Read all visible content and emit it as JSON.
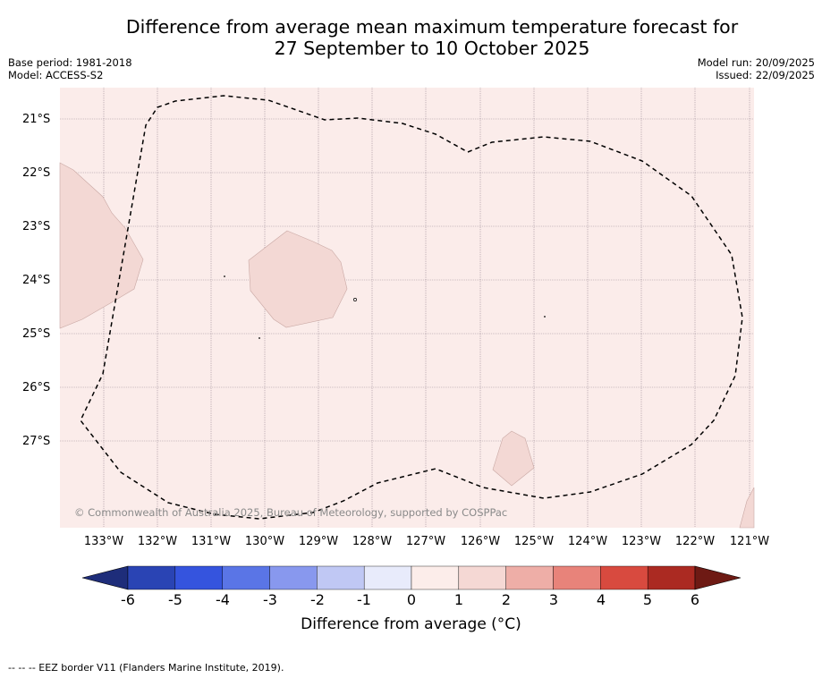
{
  "title": {
    "line1": "Difference from average mean maximum temperature forecast for",
    "line2": "27 September to 10 October 2025"
  },
  "meta": {
    "base_period": "Base period: 1981-2018",
    "model": "Model: ACCESS-S2",
    "model_run": "Model run: 20/09/2025",
    "issued": "Issued: 22/09/2025"
  },
  "map": {
    "latitudes": [
      "21°S",
      "22°S",
      "23°S",
      "24°S",
      "25°S",
      "26°S",
      "27°S"
    ],
    "longitudes": [
      "133°W",
      "132°W",
      "131°W",
      "130°W",
      "129°W",
      "128°W",
      "127°W",
      "126°W",
      "125°W",
      "124°W",
      "123°W",
      "122°W",
      "121°W"
    ],
    "colors": {
      "background_anomaly": "#fbecea",
      "higher_anomaly": "#f3d8d4",
      "eez_border": "#000000"
    },
    "copyright": "© Commonwealth of Australia 2025, Bureau of Meteorology, supported by COSPPac"
  },
  "colorbar": {
    "ticks": [
      "-6",
      "-5",
      "-4",
      "-3",
      "-2",
      "-1",
      "0",
      "1",
      "2",
      "3",
      "4",
      "5",
      "6"
    ],
    "colors": [
      "#1e2d7a",
      "#2a44b4",
      "#3554de",
      "#5a75e6",
      "#8898ee",
      "#c0c8f4",
      "#e8ebfb",
      "#fcedea",
      "#f5d8d4",
      "#eeaea7",
      "#e8837a",
      "#d84a3f",
      "#ab2a22",
      "#6e1a14"
    ],
    "label": "Difference from average (°C)"
  },
  "footnote": "--  --  -- EEZ border V11 (Flanders Marine Institute, 2019)."
}
